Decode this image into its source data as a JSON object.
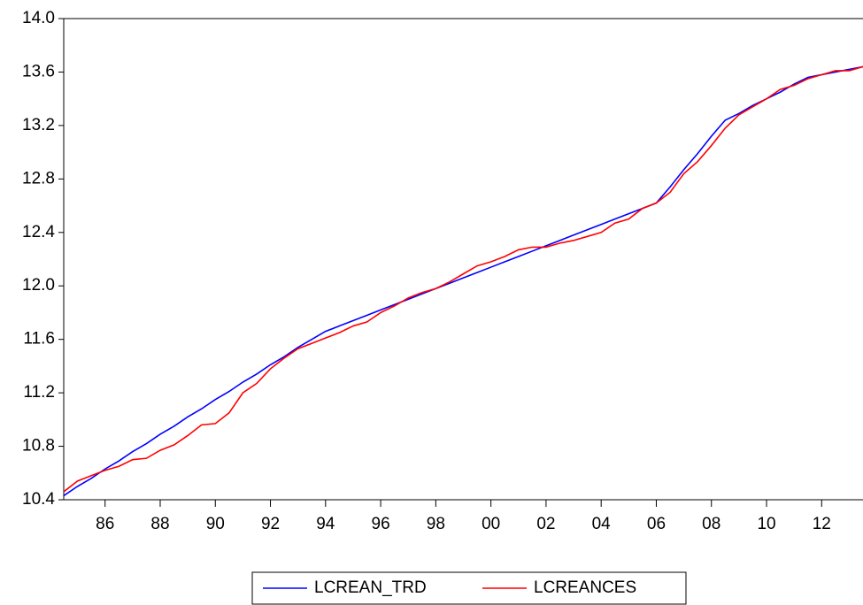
{
  "chart_data": {
    "type": "line",
    "x": [
      1984.5,
      1985,
      1985.5,
      1986,
      1986.5,
      1987,
      1987.5,
      1988,
      1988.5,
      1989,
      1989.5,
      1990,
      1990.5,
      1991,
      1991.5,
      1992,
      1992.5,
      1993,
      1993.5,
      1994,
      1994.5,
      1995,
      1995.5,
      1996,
      1996.5,
      1997,
      1997.5,
      1998,
      1998.5,
      1999,
      1999.5,
      2000,
      2000.5,
      2001,
      2001.5,
      2002,
      2002.5,
      2003,
      2003.5,
      2004,
      2004.5,
      2005,
      2005.5,
      2006,
      2006.5,
      2007,
      2007.5,
      2008,
      2008.5,
      2009,
      2009.5,
      2010,
      2010.5,
      2011,
      2011.5,
      2012,
      2012.5,
      2013,
      2013.5
    ],
    "series": [
      {
        "name": "LCREAN_TRD",
        "color": "#0000ff",
        "values": [
          10.43,
          10.5,
          10.56,
          10.63,
          10.69,
          10.76,
          10.82,
          10.89,
          10.95,
          11.02,
          11.08,
          11.15,
          11.21,
          11.28,
          11.34,
          11.41,
          11.47,
          11.54,
          11.6,
          11.66,
          11.7,
          11.74,
          11.78,
          11.82,
          11.86,
          11.9,
          11.94,
          11.98,
          12.02,
          12.06,
          12.1,
          12.14,
          12.18,
          12.22,
          12.26,
          12.3,
          12.34,
          12.38,
          12.42,
          12.46,
          12.5,
          12.54,
          12.58,
          12.62,
          12.74,
          12.87,
          12.99,
          13.12,
          13.24,
          13.29,
          13.35,
          13.4,
          13.45,
          13.51,
          13.56,
          13.58,
          13.6,
          13.62,
          13.64
        ]
      },
      {
        "name": "LCREANCES",
        "color": "#ff0000",
        "values": [
          10.46,
          10.54,
          10.58,
          10.62,
          10.65,
          10.7,
          10.71,
          10.77,
          10.81,
          10.88,
          10.96,
          10.97,
          11.05,
          11.2,
          11.27,
          11.38,
          11.46,
          11.53,
          11.57,
          11.61,
          11.65,
          11.7,
          11.73,
          11.8,
          11.85,
          11.91,
          11.95,
          11.98,
          12.03,
          12.09,
          12.15,
          12.18,
          12.22,
          12.27,
          12.29,
          12.29,
          12.32,
          12.34,
          12.37,
          12.4,
          12.47,
          12.5,
          12.58,
          12.62,
          12.7,
          12.84,
          12.93,
          13.05,
          13.18,
          13.28,
          13.34,
          13.4,
          13.47,
          13.5,
          13.55,
          13.58,
          13.61,
          13.61,
          13.64
        ]
      }
    ],
    "xlim": [
      1984.5,
      2013.5
    ],
    "xticks": [
      {
        "value": 1986,
        "label": "86"
      },
      {
        "value": 1988,
        "label": "88"
      },
      {
        "value": 1990,
        "label": "90"
      },
      {
        "value": 1992,
        "label": "92"
      },
      {
        "value": 1994,
        "label": "94"
      },
      {
        "value": 1996,
        "label": "96"
      },
      {
        "value": 1998,
        "label": "98"
      },
      {
        "value": 2000,
        "label": "00"
      },
      {
        "value": 2002,
        "label": "02"
      },
      {
        "value": 2004,
        "label": "04"
      },
      {
        "value": 2006,
        "label": "06"
      },
      {
        "value": 2008,
        "label": "08"
      },
      {
        "value": 2010,
        "label": "10"
      },
      {
        "value": 2012,
        "label": "12"
      }
    ],
    "ylim": [
      10.4,
      14.0
    ],
    "yticks": [
      10.4,
      10.8,
      11.2,
      11.6,
      {
        "value": 12,
        "label": "12.0"
      },
      12.4,
      12.8,
      13.2,
      13.6,
      {
        "value": 14,
        "label": "14.0"
      }
    ],
    "legend": "bottom"
  }
}
